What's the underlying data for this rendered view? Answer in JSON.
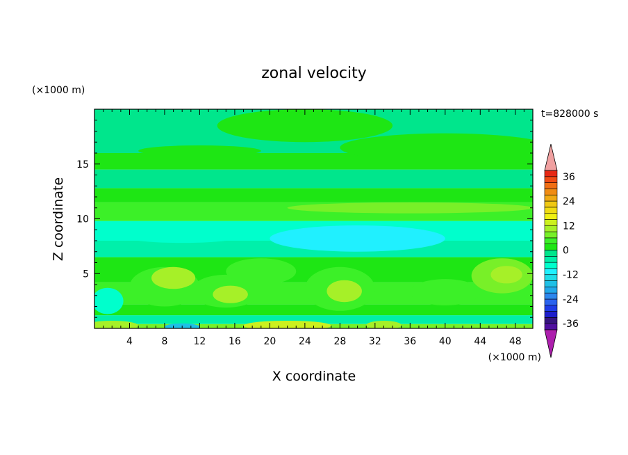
{
  "chart_data": {
    "type": "heatmap",
    "title": "zonal velocity",
    "time_label": "t=828000 s",
    "xlabel": "X coordinate",
    "ylabel": "Z coordinate",
    "x_unit": "(×1000 m)",
    "y_unit": "(×1000 m)",
    "xlim": [
      0,
      50
    ],
    "ylim": [
      0,
      20
    ],
    "x_ticks": [
      4,
      8,
      12,
      16,
      20,
      24,
      28,
      32,
      36,
      40,
      44,
      48
    ],
    "y_ticks": [
      5,
      10,
      15
    ],
    "colorbar": {
      "levels": [
        -42,
        -39,
        -36,
        -33,
        -30,
        -27,
        -24,
        -21,
        -18,
        -15,
        -12,
        -9,
        -6,
        -3,
        0,
        3,
        6,
        9,
        12,
        15,
        18,
        21,
        24,
        27,
        30,
        33,
        36,
        39,
        42
      ],
      "colors": [
        "#ad1fad",
        "#4f0f9f",
        "#36147f",
        "#1e1ecb",
        "#1e3ce6",
        "#2a63ee",
        "#2d87ee",
        "#22a8ea",
        "#1fc0e6",
        "#1fdde8",
        "#20f0ff",
        "#00ffcc",
        "#00f0aa",
        "#00e68c",
        "#1ee614",
        "#3cf028",
        "#78f028",
        "#a6f028",
        "#ccf01e",
        "#f0f014",
        "#f0dc14",
        "#f0c814",
        "#f0aa14",
        "#f08c14",
        "#f06e14",
        "#f04b14",
        "#e62814",
        "#f0a0a0"
      ],
      "tick_labels": [
        "-36",
        "-24",
        "-12",
        "0",
        "12",
        "24",
        "36"
      ],
      "tick_values": [
        -36,
        -24,
        -12,
        0,
        12,
        24,
        36
      ]
    },
    "bands": [
      {
        "z0": 0.0,
        "z1": 0.4,
        "u": 8
      },
      {
        "z0": 0.4,
        "z1": 1.2,
        "u": -5
      },
      {
        "z0": 1.2,
        "z1": 2.2,
        "u": 2
      },
      {
        "z0": 2.2,
        "z1": 4.2,
        "u": 5
      },
      {
        "z0": 4.2,
        "z1": 6.5,
        "u": 0
      },
      {
        "z0": 6.5,
        "z1": 8.0,
        "u": -6
      },
      {
        "z0": 8.0,
        "z1": 9.8,
        "u": -8
      },
      {
        "z0": 9.8,
        "z1": 11.5,
        "u": 4
      },
      {
        "z0": 11.5,
        "z1": 12.8,
        "u": 0
      },
      {
        "z0": 12.8,
        "z1": 14.5,
        "u": -2
      },
      {
        "z0": 14.5,
        "z1": 16.0,
        "u": 1
      },
      {
        "z0": 16.0,
        "z1": 18.0,
        "u": -2
      },
      {
        "z0": 18.0,
        "z1": 20.0,
        "u": -1
      }
    ],
    "features": [
      {
        "x": 8,
        "z": 3.8,
        "rx": 4,
        "rz": 1.8,
        "u": 4
      },
      {
        "x": 9,
        "z": 4.6,
        "rx": 2.5,
        "rz": 1.0,
        "u": 9
      },
      {
        "x": 15,
        "z": 3.4,
        "rx": 4,
        "rz": 1.5,
        "u": 5
      },
      {
        "x": 15.5,
        "z": 3.1,
        "rx": 2.0,
        "rz": 0.8,
        "u": 10
      },
      {
        "x": 19,
        "z": 5.2,
        "rx": 4,
        "rz": 1.2,
        "u": 3
      },
      {
        "x": 28,
        "z": 3.6,
        "rx": 4,
        "rz": 2.0,
        "u": 5
      },
      {
        "x": 28.5,
        "z": 3.4,
        "rx": 2.0,
        "rz": 1.0,
        "u": 11
      },
      {
        "x": 40,
        "z": 3.3,
        "rx": 4,
        "rz": 1.2,
        "u": 4
      },
      {
        "x": 46.5,
        "z": 4.8,
        "rx": 3.5,
        "rz": 1.6,
        "u": 6
      },
      {
        "x": 47,
        "z": 4.9,
        "rx": 1.8,
        "rz": 0.8,
        "u": 11
      },
      {
        "x": 22,
        "z": 0.25,
        "rx": 5,
        "rz": 0.45,
        "u": 14
      },
      {
        "x": 2,
        "z": 0.25,
        "rx": 3,
        "rz": 0.45,
        "u": 11
      },
      {
        "x": 33,
        "z": 0.3,
        "rx": 2,
        "rz": 0.4,
        "u": 10
      },
      {
        "x": 30,
        "z": 8.2,
        "rx": 10,
        "rz": 1.2,
        "u": -10
      },
      {
        "x": 10,
        "z": 8.7,
        "rx": 8,
        "rz": 0.9,
        "u": -9
      },
      {
        "x": 1.5,
        "z": 2.5,
        "rx": 1.8,
        "rz": 1.2,
        "u": -8
      },
      {
        "x": 10,
        "z": 0.15,
        "rx": 2,
        "rz": 0.3,
        "u": -18
      },
      {
        "x": 24,
        "z": 18.5,
        "rx": 10,
        "rz": 1.5,
        "u": 1
      },
      {
        "x": 40,
        "z": 16.5,
        "rx": 12,
        "rz": 1.3,
        "u": 1
      },
      {
        "x": 12,
        "z": 16.2,
        "rx": 7,
        "rz": 0.5,
        "u": 1
      },
      {
        "x": 36,
        "z": 11.0,
        "rx": 14,
        "rz": 0.5,
        "u": 6
      }
    ]
  }
}
